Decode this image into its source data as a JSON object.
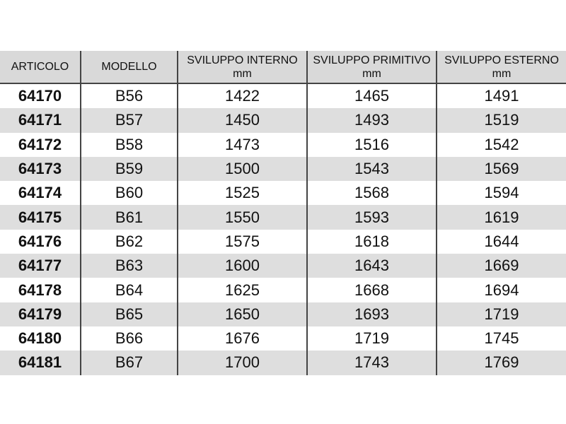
{
  "table": {
    "headers": [
      "ARTICOLO",
      "MODELLO",
      "SVILUPPO INTERNO mm",
      "SVILUPPO PRIMITIVO mm",
      "SVILUPPO ESTERNO mm"
    ],
    "rows": [
      [
        "64170",
        "B56",
        "1422",
        "1465",
        "1491"
      ],
      [
        "64171",
        "B57",
        "1450",
        "1493",
        "1519"
      ],
      [
        "64172",
        "B58",
        "1473",
        "1516",
        "1542"
      ],
      [
        "64173",
        "B59",
        "1500",
        "1543",
        "1569"
      ],
      [
        "64174",
        "B60",
        "1525",
        "1568",
        "1594"
      ],
      [
        "64175",
        "B61",
        "1550",
        "1593",
        "1619"
      ],
      [
        "64176",
        "B62",
        "1575",
        "1618",
        "1644"
      ],
      [
        "64177",
        "B63",
        "1600",
        "1643",
        "1669"
      ],
      [
        "64178",
        "B64",
        "1625",
        "1668",
        "1694"
      ],
      [
        "64179",
        "B65",
        "1650",
        "1693",
        "1719"
      ],
      [
        "64180",
        "B66",
        "1676",
        "1719",
        "1745"
      ],
      [
        "64181",
        "B67",
        "1700",
        "1743",
        "1769"
      ]
    ]
  },
  "colors": {
    "header_bg": "#d9d9d9",
    "alt_row_bg": "#dedede",
    "border": "#444444"
  }
}
